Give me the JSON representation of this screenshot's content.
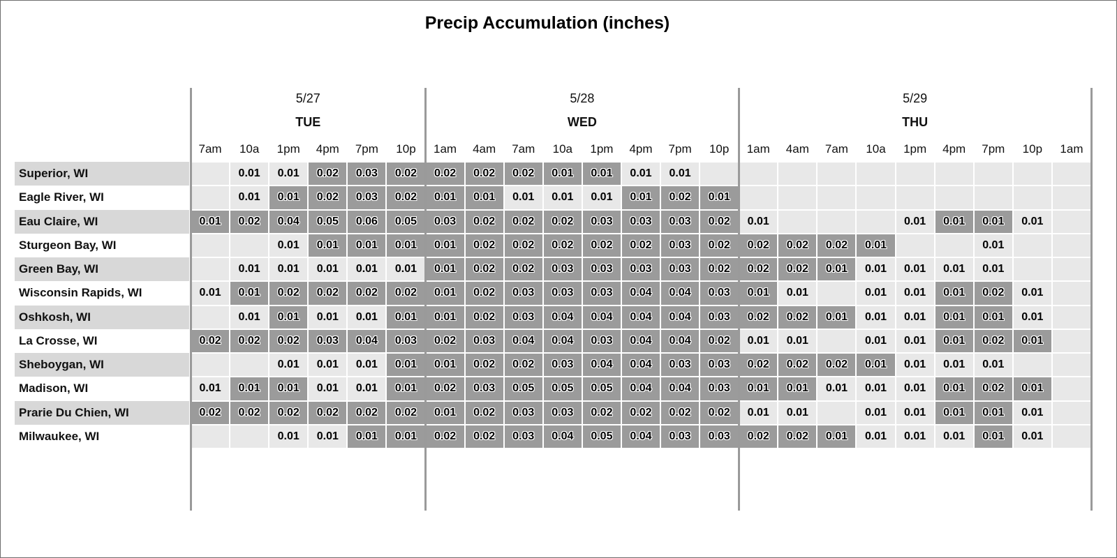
{
  "title": "Precip Accumulation (inches)",
  "days": [
    {
      "date": "5/27",
      "name": "TUE",
      "cols": 6
    },
    {
      "date": "5/28",
      "name": "WED",
      "cols": 8
    },
    {
      "date": "5/29",
      "name": "THU",
      "cols": 9
    }
  ],
  "time_labels": [
    "7am",
    "10a",
    "1pm",
    "4pm",
    "7pm",
    "10p",
    "1am",
    "4am",
    "7am",
    "10a",
    "1pm",
    "4pm",
    "7pm",
    "10p",
    "1am",
    "4am",
    "7am",
    "10a",
    "1pm",
    "4pm",
    "7pm",
    "10p",
    "1am"
  ],
  "colors": {
    "dark_cell": "#9b9b9b",
    "light_cell": "#e8e8e8",
    "row_label_band": "#d8d8d8",
    "divider": "#9a9a9a",
    "text": "#000000"
  },
  "chart_data": {
    "type": "heatmap",
    "title": "Precip Accumulation (inches)",
    "unit": "inches",
    "x_groups": [
      {
        "date": "5/27",
        "day": "TUE",
        "times": [
          "7am",
          "10a",
          "1pm",
          "4pm",
          "7pm",
          "10p"
        ]
      },
      {
        "date": "5/28",
        "day": "WED",
        "times": [
          "1am",
          "4am",
          "7am",
          "10a",
          "1pm",
          "4pm",
          "7pm",
          "10p"
        ]
      },
      {
        "date": "5/29",
        "day": "THU",
        "times": [
          "1am",
          "4am",
          "7am",
          "10a",
          "1pm",
          "4pm",
          "7pm",
          "10p",
          "1am"
        ]
      }
    ],
    "cell_note": "values ending in * are shown on dark-gray high-intensity cells; plain values on light cells; empty string means no accumulation shown",
    "rows": [
      {
        "city": "Superior, WI",
        "values": [
          "",
          "0.01",
          "0.01",
          "0.02*",
          "0.03*",
          "0.02*",
          "0.02*",
          "0.02*",
          "0.02*",
          "0.01*",
          "0.01*",
          "0.01",
          "0.01",
          "",
          "",
          "",
          "",
          "",
          "",
          "",
          "",
          "",
          ""
        ]
      },
      {
        "city": "Eagle River, WI",
        "values": [
          "",
          "0.01",
          "0.01*",
          "0.02*",
          "0.03*",
          "0.02*",
          "0.01*",
          "0.01*",
          "0.01",
          "0.01",
          "0.01",
          "0.01*",
          "0.02*",
          "0.01*",
          "",
          "",
          "",
          "",
          "",
          "",
          "",
          "",
          ""
        ]
      },
      {
        "city": "Eau Claire, WI",
        "values": [
          "0.01*",
          "0.02*",
          "0.04*",
          "0.05*",
          "0.06*",
          "0.05*",
          "0.03*",
          "0.02*",
          "0.02*",
          "0.02*",
          "0.03*",
          "0.03*",
          "0.03*",
          "0.02*",
          "0.01",
          "",
          "",
          "",
          "0.01",
          "0.01*",
          "0.01*",
          "0.01",
          ""
        ]
      },
      {
        "city": "Sturgeon Bay, WI",
        "values": [
          "",
          "",
          "0.01",
          "0.01*",
          "0.01*",
          "0.01*",
          "0.01*",
          "0.02*",
          "0.02*",
          "0.02*",
          "0.02*",
          "0.02*",
          "0.03*",
          "0.02*",
          "0.02*",
          "0.02*",
          "0.02*",
          "0.01*",
          "",
          "",
          "0.01",
          "",
          ""
        ]
      },
      {
        "city": "Green Bay, WI",
        "values": [
          "",
          "0.01",
          "0.01",
          "0.01",
          "0.01",
          "0.01",
          "0.01*",
          "0.02*",
          "0.02*",
          "0.03*",
          "0.03*",
          "0.03*",
          "0.03*",
          "0.02*",
          "0.02*",
          "0.02*",
          "0.01*",
          "0.01",
          "0.01",
          "0.01",
          "0.01",
          "",
          ""
        ]
      },
      {
        "city": "Wisconsin Rapids, WI",
        "values": [
          "0.01",
          "0.01*",
          "0.02*",
          "0.02*",
          "0.02*",
          "0.02*",
          "0.01*",
          "0.02*",
          "0.03*",
          "0.03*",
          "0.03*",
          "0.04*",
          "0.04*",
          "0.03*",
          "0.01*",
          "0.01",
          "",
          "0.01",
          "0.01",
          "0.01*",
          "0.02*",
          "0.01",
          ""
        ]
      },
      {
        "city": "Oshkosh, WI",
        "values": [
          "",
          "0.01",
          "0.01*",
          "0.01",
          "0.01",
          "0.01*",
          "0.01*",
          "0.02*",
          "0.03*",
          "0.04*",
          "0.04*",
          "0.04*",
          "0.04*",
          "0.03*",
          "0.02*",
          "0.02*",
          "0.01*",
          "0.01",
          "0.01",
          "0.01*",
          "0.01*",
          "0.01",
          ""
        ]
      },
      {
        "city": "La Crosse, WI",
        "values": [
          "0.02*",
          "0.02*",
          "0.02*",
          "0.03*",
          "0.04*",
          "0.03*",
          "0.02*",
          "0.03*",
          "0.04*",
          "0.04*",
          "0.03*",
          "0.04*",
          "0.04*",
          "0.02*",
          "0.01",
          "0.01",
          "",
          "0.01",
          "0.01",
          "0.01*",
          "0.02*",
          "0.01*",
          ""
        ]
      },
      {
        "city": "Sheboygan, WI",
        "values": [
          "",
          "",
          "0.01",
          "0.01",
          "0.01",
          "0.01*",
          "0.01*",
          "0.02*",
          "0.02*",
          "0.03*",
          "0.04*",
          "0.04*",
          "0.03*",
          "0.03*",
          "0.02*",
          "0.02*",
          "0.02*",
          "0.01*",
          "0.01",
          "0.01",
          "0.01",
          "",
          ""
        ]
      },
      {
        "city": "Madison, WI",
        "values": [
          "0.01",
          "0.01*",
          "0.01*",
          "0.01",
          "0.01",
          "0.01*",
          "0.02*",
          "0.03*",
          "0.05*",
          "0.05*",
          "0.05*",
          "0.04*",
          "0.04*",
          "0.03*",
          "0.01*",
          "0.01*",
          "0.01",
          "0.01",
          "0.01",
          "0.01*",
          "0.02*",
          "0.01*",
          ""
        ]
      },
      {
        "city": "Prarie Du Chien, WI",
        "values": [
          "0.02*",
          "0.02*",
          "0.02*",
          "0.02*",
          "0.02*",
          "0.02*",
          "0.01*",
          "0.02*",
          "0.03*",
          "0.03*",
          "0.02*",
          "0.02*",
          "0.02*",
          "0.02*",
          "0.01",
          "0.01",
          "",
          "0.01",
          "0.01",
          "0.01*",
          "0.01*",
          "0.01",
          ""
        ]
      },
      {
        "city": "Milwaukee, WI",
        "values": [
          "",
          "",
          "0.01",
          "0.01",
          "0.01*",
          "0.01*",
          "0.02*",
          "0.02*",
          "0.03*",
          "0.04*",
          "0.05*",
          "0.04*",
          "0.03*",
          "0.03*",
          "0.02*",
          "0.02*",
          "0.01*",
          "0.01",
          "0.01",
          "0.01",
          "0.01*",
          "0.01",
          ""
        ]
      }
    ]
  }
}
